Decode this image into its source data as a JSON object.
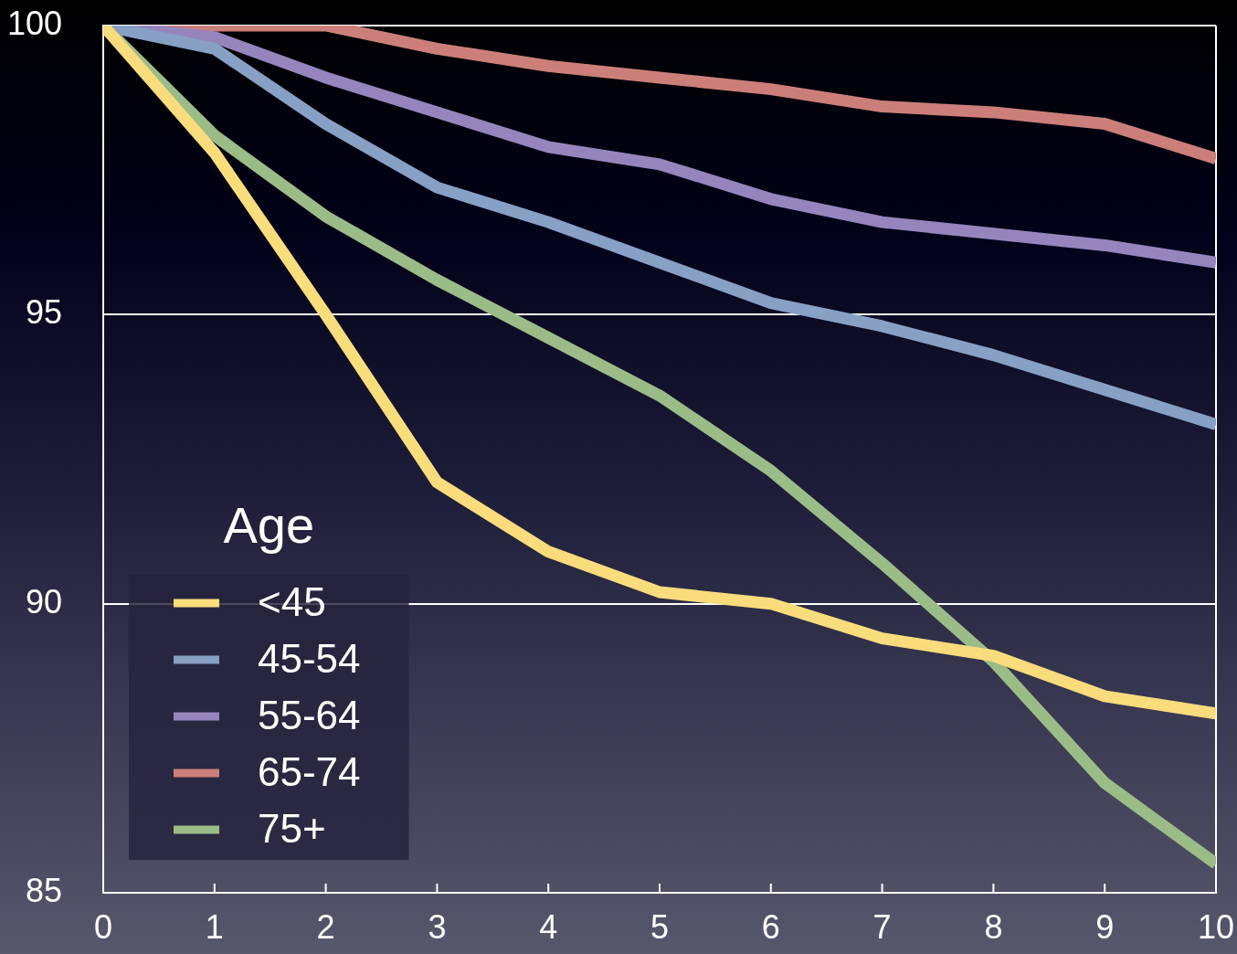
{
  "chart_data": {
    "type": "line",
    "x": [
      0,
      1,
      2,
      3,
      4,
      5,
      6,
      7,
      8,
      9,
      10
    ],
    "xlim": [
      0,
      10
    ],
    "xticks": [
      0,
      1,
      2,
      3,
      4,
      5,
      6,
      7,
      8,
      9,
      10
    ],
    "ylim": [
      85,
      100
    ],
    "yticks": [
      85,
      90,
      95,
      100
    ],
    "grid": "y",
    "legend": "bottom left",
    "legend_title": "Age",
    "marker": "none",
    "line_style": "solid",
    "series": [
      {
        "name": "<45",
        "color": "#f9dc7c",
        "values": [
          100,
          97.8,
          95.0,
          92.1,
          90.9,
          90.2,
          90.0,
          89.4,
          89.1,
          88.4,
          88.1
        ]
      },
      {
        "name": "45-54",
        "color": "#87a0c4",
        "values": [
          100,
          99.6,
          98.3,
          97.2,
          96.6,
          95.9,
          95.2,
          94.8,
          94.3,
          93.7,
          93.1
        ]
      },
      {
        "name": "55-64",
        "color": "#9685bd",
        "values": [
          100,
          99.8,
          99.1,
          98.5,
          97.9,
          97.6,
          97.0,
          96.6,
          96.4,
          96.2,
          95.9
        ]
      },
      {
        "name": "65-74",
        "color": "#cc7f7a",
        "values": [
          100,
          100,
          100,
          99.6,
          99.3,
          99.1,
          98.9,
          98.6,
          98.5,
          98.3,
          97.7
        ]
      },
      {
        "name": "75+",
        "color": "#9bbc87",
        "values": [
          100,
          98.1,
          96.7,
          95.6,
          94.6,
          93.6,
          92.3,
          90.7,
          89.0,
          86.9,
          85.5
        ]
      }
    ]
  }
}
